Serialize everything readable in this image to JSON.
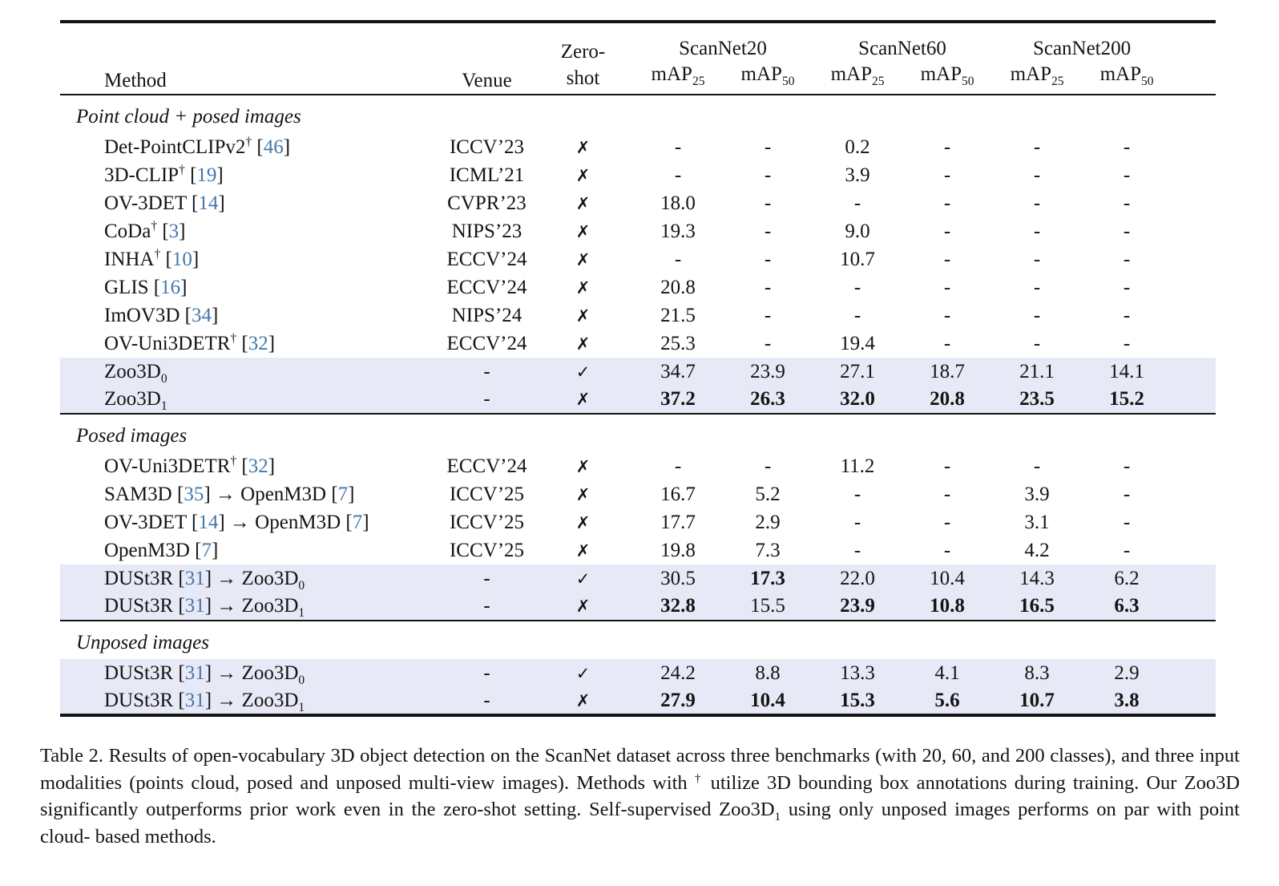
{
  "colors": {
    "citation_link": "#4478ab",
    "row_highlight": "#e8e9f6",
    "rule": "#141414"
  },
  "table": {
    "header": {
      "method": "Method",
      "venue": "Venue",
      "zero_shot_lines": [
        "Zero-",
        "shot"
      ],
      "benchmarks": [
        "ScanNet20",
        "ScanNet60",
        "ScanNet200"
      ],
      "metric_base": "mAP",
      "metric_subs": [
        "25",
        "50"
      ]
    },
    "sections": [
      {
        "title": "Point cloud + posed images",
        "rows": [
          {
            "method": [
              {
                "t": "text",
                "v": "Det-PointCLIPv2"
              },
              {
                "t": "sup",
                "v": "†"
              },
              {
                "t": "text",
                "v": " ["
              },
              {
                "t": "cite",
                "v": "46"
              },
              {
                "t": "text",
                "v": "]"
              }
            ],
            "venue": "ICCV’23",
            "zero_shot": "✗",
            "values": [
              "-",
              "-",
              "0.2",
              "-",
              "-",
              "-"
            ],
            "bold": [
              false,
              false,
              false,
              false,
              false,
              false
            ],
            "highlight": false
          },
          {
            "method": [
              {
                "t": "text",
                "v": "3D-CLIP"
              },
              {
                "t": "sup",
                "v": "†"
              },
              {
                "t": "text",
                "v": " ["
              },
              {
                "t": "cite",
                "v": "19"
              },
              {
                "t": "text",
                "v": "]"
              }
            ],
            "venue": "ICML’21",
            "zero_shot": "✗",
            "values": [
              "-",
              "-",
              "3.9",
              "-",
              "-",
              "-"
            ],
            "bold": [
              false,
              false,
              false,
              false,
              false,
              false
            ],
            "highlight": false
          },
          {
            "method": [
              {
                "t": "text",
                "v": "OV-3DET ["
              },
              {
                "t": "cite",
                "v": "14"
              },
              {
                "t": "text",
                "v": "]"
              }
            ],
            "venue": "CVPR’23",
            "zero_shot": "✗",
            "values": [
              "18.0",
              "-",
              "-",
              "-",
              "-",
              "-"
            ],
            "bold": [
              false,
              false,
              false,
              false,
              false,
              false
            ],
            "highlight": false
          },
          {
            "method": [
              {
                "t": "text",
                "v": "CoDa"
              },
              {
                "t": "sup",
                "v": "†"
              },
              {
                "t": "text",
                "v": " ["
              },
              {
                "t": "cite",
                "v": "3"
              },
              {
                "t": "text",
                "v": "]"
              }
            ],
            "venue": "NIPS’23",
            "zero_shot": "✗",
            "values": [
              "19.3",
              "-",
              "9.0",
              "-",
              "-",
              "-"
            ],
            "bold": [
              false,
              false,
              false,
              false,
              false,
              false
            ],
            "highlight": false
          },
          {
            "method": [
              {
                "t": "text",
                "v": "INHA"
              },
              {
                "t": "sup",
                "v": "†"
              },
              {
                "t": "text",
                "v": " ["
              },
              {
                "t": "cite",
                "v": "10"
              },
              {
                "t": "text",
                "v": "]"
              }
            ],
            "venue": "ECCV’24",
            "zero_shot": "✗",
            "values": [
              "-",
              "-",
              "10.7",
              "-",
              "-",
              "-"
            ],
            "bold": [
              false,
              false,
              false,
              false,
              false,
              false
            ],
            "highlight": false
          },
          {
            "method": [
              {
                "t": "text",
                "v": "GLIS ["
              },
              {
                "t": "cite",
                "v": "16"
              },
              {
                "t": "text",
                "v": "]"
              }
            ],
            "venue": "ECCV’24",
            "zero_shot": "✗",
            "values": [
              "20.8",
              "-",
              "-",
              "-",
              "-",
              "-"
            ],
            "bold": [
              false,
              false,
              false,
              false,
              false,
              false
            ],
            "highlight": false
          },
          {
            "method": [
              {
                "t": "text",
                "v": "ImOV3D ["
              },
              {
                "t": "cite",
                "v": "34"
              },
              {
                "t": "text",
                "v": "]"
              }
            ],
            "venue": "NIPS’24",
            "zero_shot": "✗",
            "values": [
              "21.5",
              "-",
              "-",
              "-",
              "-",
              "-"
            ],
            "bold": [
              false,
              false,
              false,
              false,
              false,
              false
            ],
            "highlight": false
          },
          {
            "method": [
              {
                "t": "text",
                "v": "OV-Uni3DETR"
              },
              {
                "t": "sup",
                "v": "†"
              },
              {
                "t": "text",
                "v": " ["
              },
              {
                "t": "cite",
                "v": "32"
              },
              {
                "t": "text",
                "v": "]"
              }
            ],
            "venue": "ECCV’24",
            "zero_shot": "✗",
            "values": [
              "25.3",
              "-",
              "19.4",
              "-",
              "-",
              "-"
            ],
            "bold": [
              false,
              false,
              false,
              false,
              false,
              false
            ],
            "highlight": false
          },
          {
            "method": [
              {
                "t": "text",
                "v": "Zoo3D"
              },
              {
                "t": "sub",
                "v": "0"
              }
            ],
            "venue": "-",
            "zero_shot": "✓",
            "values": [
              "34.7",
              "23.9",
              "27.1",
              "18.7",
              "21.1",
              "14.1"
            ],
            "bold": [
              false,
              false,
              false,
              false,
              false,
              false
            ],
            "highlight": true
          },
          {
            "method": [
              {
                "t": "text",
                "v": "Zoo3D"
              },
              {
                "t": "sub",
                "v": "1"
              }
            ],
            "venue": "-",
            "zero_shot": "✗",
            "values": [
              "37.2",
              "26.3",
              "32.0",
              "20.8",
              "23.5",
              "15.2"
            ],
            "bold": [
              true,
              true,
              true,
              true,
              true,
              true
            ],
            "highlight": true
          }
        ]
      },
      {
        "title": "Posed images",
        "rows": [
          {
            "method": [
              {
                "t": "text",
                "v": "OV-Uni3DETR"
              },
              {
                "t": "sup",
                "v": "†"
              },
              {
                "t": "text",
                "v": " ["
              },
              {
                "t": "cite",
                "v": "32"
              },
              {
                "t": "text",
                "v": "]"
              }
            ],
            "venue": "ECCV’24",
            "zero_shot": "✗",
            "values": [
              "-",
              "-",
              "11.2",
              "-",
              "-",
              "-"
            ],
            "bold": [
              false,
              false,
              false,
              false,
              false,
              false
            ],
            "highlight": false
          },
          {
            "method": [
              {
                "t": "text",
                "v": "SAM3D ["
              },
              {
                "t": "cite",
                "v": "35"
              },
              {
                "t": "text",
                "v": "] → OpenM3D ["
              },
              {
                "t": "cite",
                "v": "7"
              },
              {
                "t": "text",
                "v": "]"
              }
            ],
            "venue": "ICCV’25",
            "zero_shot": "✗",
            "values": [
              "16.7",
              "5.2",
              "-",
              "-",
              "3.9",
              "-"
            ],
            "bold": [
              false,
              false,
              false,
              false,
              false,
              false
            ],
            "highlight": false
          },
          {
            "method": [
              {
                "t": "text",
                "v": "OV-3DET ["
              },
              {
                "t": "cite",
                "v": "14"
              },
              {
                "t": "text",
                "v": "] → OpenM3D ["
              },
              {
                "t": "cite",
                "v": "7"
              },
              {
                "t": "text",
                "v": "]"
              }
            ],
            "venue": "ICCV’25",
            "zero_shot": "✗",
            "values": [
              "17.7",
              "2.9",
              "-",
              "-",
              "3.1",
              "-"
            ],
            "bold": [
              false,
              false,
              false,
              false,
              false,
              false
            ],
            "highlight": false
          },
          {
            "method": [
              {
                "t": "text",
                "v": "OpenM3D ["
              },
              {
                "t": "cite",
                "v": "7"
              },
              {
                "t": "text",
                "v": "]"
              }
            ],
            "venue": "ICCV’25",
            "zero_shot": "✗",
            "values": [
              "19.8",
              "7.3",
              "-",
              "-",
              "4.2",
              "-"
            ],
            "bold": [
              false,
              false,
              false,
              false,
              false,
              false
            ],
            "highlight": false
          },
          {
            "method": [
              {
                "t": "text",
                "v": "DUSt3R ["
              },
              {
                "t": "cite",
                "v": "31"
              },
              {
                "t": "text",
                "v": "] → Zoo3D"
              },
              {
                "t": "sub",
                "v": "0"
              }
            ],
            "venue": "-",
            "zero_shot": "✓",
            "values": [
              "30.5",
              "17.3",
              "22.0",
              "10.4",
              "14.3",
              "6.2"
            ],
            "bold": [
              false,
              true,
              false,
              false,
              false,
              false
            ],
            "highlight": true
          },
          {
            "method": [
              {
                "t": "text",
                "v": "DUSt3R ["
              },
              {
                "t": "cite",
                "v": "31"
              },
              {
                "t": "text",
                "v": "] → Zoo3D"
              },
              {
                "t": "sub",
                "v": "1"
              }
            ],
            "venue": "-",
            "zero_shot": "✗",
            "values": [
              "32.8",
              "15.5",
              "23.9",
              "10.8",
              "16.5",
              "6.3"
            ],
            "bold": [
              true,
              false,
              true,
              true,
              true,
              true
            ],
            "highlight": true
          }
        ]
      },
      {
        "title": "Unposed images",
        "rows": [
          {
            "method": [
              {
                "t": "text",
                "v": "DUSt3R ["
              },
              {
                "t": "cite",
                "v": "31"
              },
              {
                "t": "text",
                "v": "] → Zoo3D"
              },
              {
                "t": "sub",
                "v": "0"
              }
            ],
            "venue": "-",
            "zero_shot": "✓",
            "values": [
              "24.2",
              "8.8",
              "13.3",
              "4.1",
              "8.3",
              "2.9"
            ],
            "bold": [
              false,
              false,
              false,
              false,
              false,
              false
            ],
            "highlight": true
          },
          {
            "method": [
              {
                "t": "text",
                "v": "DUSt3R ["
              },
              {
                "t": "cite",
                "v": "31"
              },
              {
                "t": "text",
                "v": "] → Zoo3D"
              },
              {
                "t": "sub",
                "v": "1"
              }
            ],
            "venue": "-",
            "zero_shot": "✗",
            "values": [
              "27.9",
              "10.4",
              "15.3",
              "5.6",
              "10.7",
              "3.8"
            ],
            "bold": [
              true,
              true,
              true,
              true,
              true,
              true
            ],
            "highlight": true
          }
        ]
      }
    ]
  },
  "caption": [
    {
      "t": "text",
      "v": "Table 2. Results of open-vocabulary 3D object detection on the ScanNet dataset across three benchmarks (with 20, 60, and 200 classes), and three input modalities (points cloud, posed and unposed multi-view images). Methods with "
    },
    {
      "t": "sup",
      "v": "†"
    },
    {
      "t": "text",
      "v": " utilize 3D bounding box annotations during training. Our Zoo3D significantly outperforms prior work even in the zero-shot setting. Self-supervised Zoo3D"
    },
    {
      "t": "sub",
      "v": "1"
    },
    {
      "t": "text",
      "v": " using only unposed images performs on par with point cloud- based methods."
    }
  ]
}
